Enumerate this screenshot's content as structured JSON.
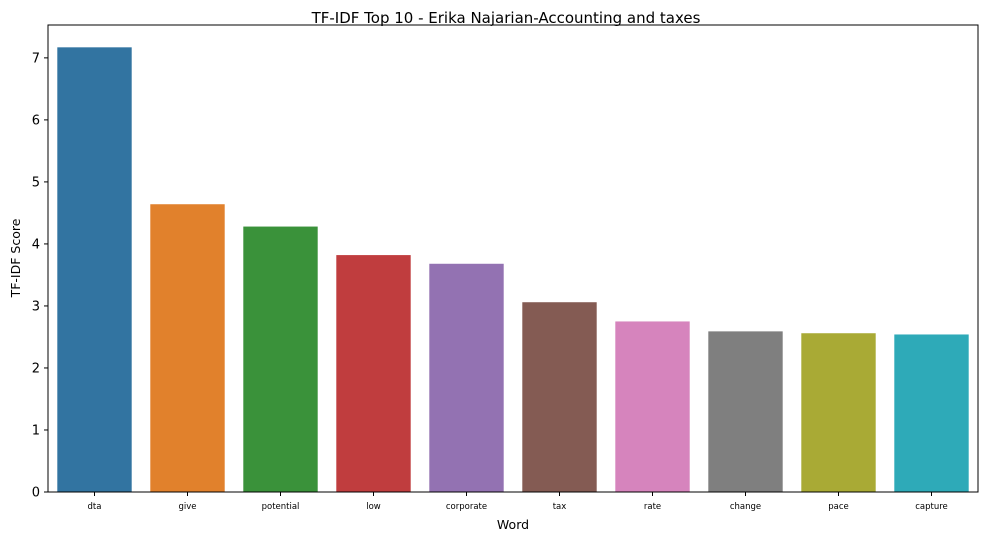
{
  "chart_data": {
    "type": "bar",
    "title": "TF-IDF Top 10 - Erika Najarian-Accounting and taxes",
    "xlabel": "Word",
    "ylabel": "TF-IDF Score",
    "categories": [
      "dta",
      "give",
      "potential",
      "low",
      "corporate",
      "tax",
      "rate",
      "change",
      "pace",
      "capture"
    ],
    "values": [
      7.17,
      4.64,
      4.28,
      3.82,
      3.68,
      3.06,
      2.75,
      2.59,
      2.56,
      2.54
    ],
    "colors": [
      "#3274a1",
      "#e1812c",
      "#3a923a",
      "#c03d3e",
      "#9372b2",
      "#845b53",
      "#d684bd",
      "#7f7f7f",
      "#a9aa35",
      "#2eaab8"
    ],
    "ylim": [
      0,
      7.53
    ],
    "yticks": [
      0,
      1,
      2,
      3,
      4,
      5,
      6,
      7
    ],
    "grid": false,
    "legend": "none"
  }
}
